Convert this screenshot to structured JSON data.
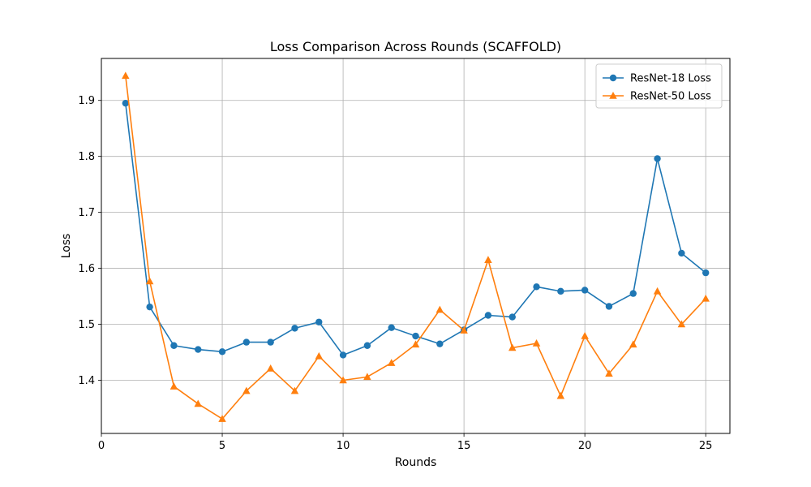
{
  "chart_data": {
    "type": "line",
    "title": "Loss Comparison Across Rounds (SCAFFOLD)",
    "xlabel": "Rounds",
    "ylabel": "Loss",
    "xlim": [
      0,
      26
    ],
    "ylim": [
      1.305,
      1.975
    ],
    "xticks": [
      0,
      5,
      10,
      15,
      20,
      25
    ],
    "yticks": [
      1.4,
      1.5,
      1.6,
      1.7,
      1.8,
      1.9
    ],
    "grid": true,
    "legend_position": "top-right",
    "x": [
      1,
      2,
      3,
      4,
      5,
      6,
      7,
      8,
      9,
      10,
      11,
      12,
      13,
      14,
      15,
      16,
      17,
      18,
      19,
      20,
      21,
      22,
      23,
      24,
      25
    ],
    "series": [
      {
        "name": "ResNet-18 Loss",
        "color": "#1f77b4",
        "marker": "circle",
        "values": [
          1.895,
          1.531,
          1.462,
          1.455,
          1.451,
          1.468,
          1.468,
          1.493,
          1.504,
          1.445,
          1.462,
          1.494,
          1.479,
          1.465,
          1.49,
          1.516,
          1.513,
          1.567,
          1.559,
          1.561,
          1.532,
          1.555,
          1.796,
          1.627,
          1.592
        ]
      },
      {
        "name": "ResNet-50 Loss",
        "color": "#ff7f0e",
        "marker": "triangle",
        "values": [
          1.944,
          1.577,
          1.389,
          1.358,
          1.331,
          1.381,
          1.421,
          1.381,
          1.443,
          1.4,
          1.406,
          1.431,
          1.464,
          1.526,
          1.489,
          1.615,
          1.458,
          1.466,
          1.372,
          1.479,
          1.412,
          1.464,
          1.559,
          1.5,
          1.546
        ]
      }
    ]
  }
}
